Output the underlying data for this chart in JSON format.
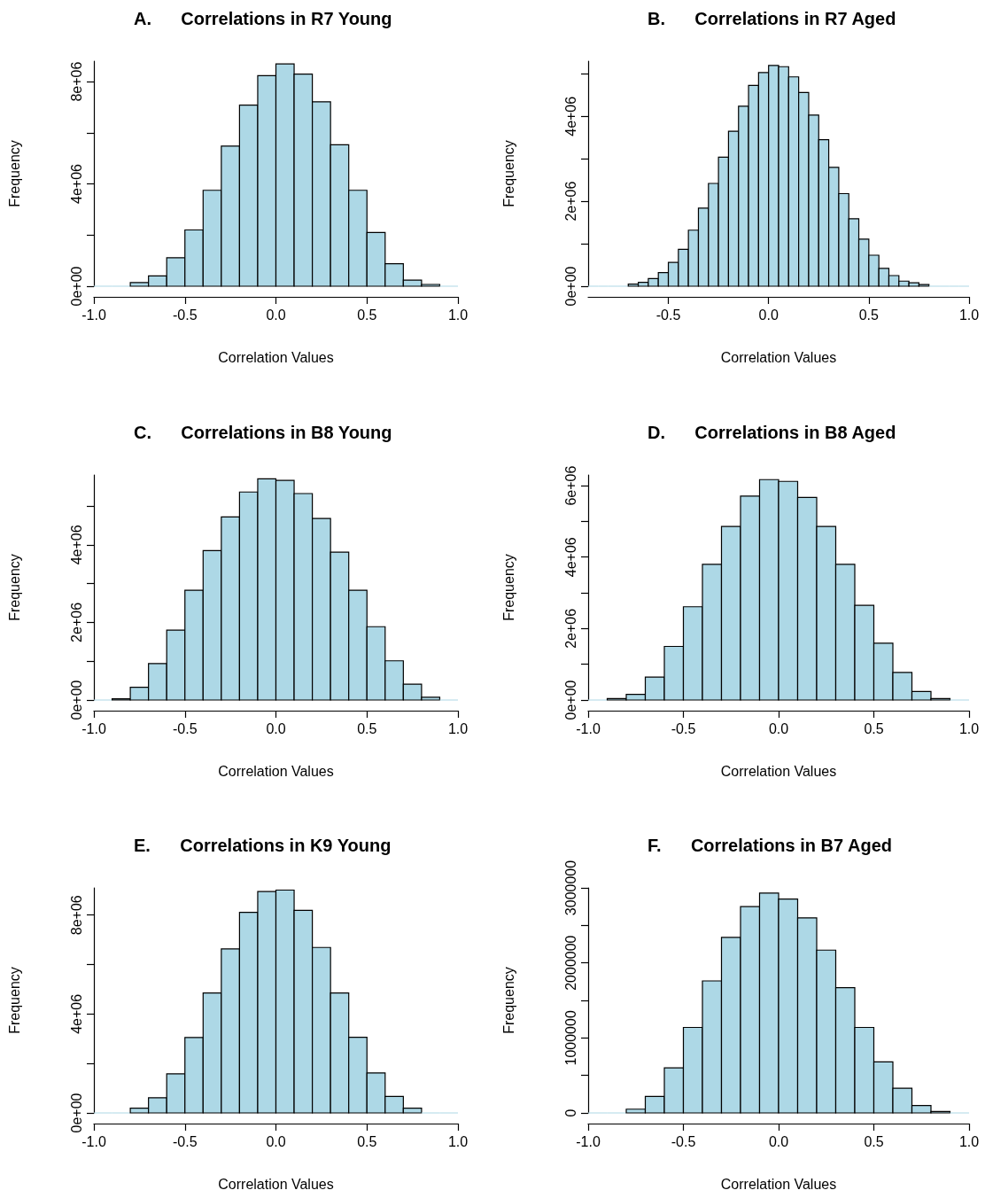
{
  "chart_data": [
    {
      "type": "histogram",
      "title": "A.      Correlations in R7 Young",
      "xlabel": "Correlation Values",
      "ylabel": "Frequency",
      "color": "#add8e6",
      "bins": [
        -1.0,
        -0.9,
        -0.8,
        -0.7,
        -0.6,
        -0.5,
        -0.4,
        -0.3,
        -0.2,
        -0.1,
        0.0,
        0.1,
        0.2,
        0.3,
        0.4,
        0.5,
        0.6,
        0.7,
        0.8,
        0.9,
        1.0
      ],
      "values": [
        0,
        0,
        140000,
        400000,
        1110000,
        2200000,
        3750000,
        5480000,
        7080000,
        8230000,
        8690000,
        8290000,
        7210000,
        5530000,
        3750000,
        2100000,
        880000,
        240000,
        70000,
        0
      ],
      "xlim": [
        -1.0,
        1.0
      ],
      "xticks": [
        {
          "value": -1.0,
          "label": "-1.0"
        },
        {
          "value": -0.5,
          "label": "-0.5"
        },
        {
          "value": 0,
          "label": "0.0"
        },
        {
          "value": 0.5,
          "label": "0.5"
        },
        {
          "value": 1.0,
          "label": "1.0"
        }
      ],
      "ylim": [
        0,
        8800000
      ],
      "yticks": [
        {
          "value": 0,
          "label": "0e+00"
        },
        {
          "value": 2000000,
          "label": null
        },
        {
          "value": 4000000,
          "label": "4e+06"
        },
        {
          "value": 6000000,
          "label": null
        },
        {
          "value": 8000000,
          "label": "8e+06"
        }
      ]
    },
    {
      "type": "histogram",
      "title": "B.      Correlations in R7 Aged",
      "xlabel": "Correlation Values",
      "ylabel": "Frequency",
      "color": "#add8e6",
      "bins": [
        -0.9,
        -0.85,
        -0.8,
        -0.75,
        -0.7,
        -0.65,
        -0.6,
        -0.55,
        -0.5,
        -0.45,
        -0.4,
        -0.35,
        -0.3,
        -0.25,
        -0.2,
        -0.15,
        -0.1,
        -0.05,
        0.0,
        0.05,
        0.1,
        0.15,
        0.2,
        0.25,
        0.3,
        0.35,
        0.4,
        0.45,
        0.5,
        0.55,
        0.6,
        0.65,
        0.7,
        0.75,
        0.8,
        0.85,
        0.9,
        0.95,
        1.0
      ],
      "values": [
        0,
        0,
        0,
        0,
        50000,
        90000,
        180000,
        320000,
        560000,
        870000,
        1320000,
        1840000,
        2420000,
        3040000,
        3650000,
        4240000,
        4730000,
        5030000,
        5200000,
        5170000,
        4930000,
        4560000,
        4030000,
        3450000,
        2800000,
        2180000,
        1590000,
        1110000,
        730000,
        420000,
        250000,
        120000,
        80000,
        40000,
        0,
        0,
        0,
        0
      ],
      "xlim": [
        -0.9,
        1.0
      ],
      "xticks": [
        {
          "value": -0.5,
          "label": "-0.5"
        },
        {
          "value": 0,
          "label": "0.0"
        },
        {
          "value": 0.5,
          "label": "0.5"
        },
        {
          "value": 1.0,
          "label": "1.0"
        }
      ],
      "ylim": [
        0,
        5300000
      ],
      "yticks": [
        {
          "value": 0,
          "label": "0e+00"
        },
        {
          "value": 1000000,
          "label": null
        },
        {
          "value": 2000000,
          "label": "2e+06"
        },
        {
          "value": 3000000,
          "label": null
        },
        {
          "value": 4000000,
          "label": "4e+06"
        },
        {
          "value": 5000000,
          "label": null
        }
      ]
    },
    {
      "type": "histogram",
      "title": "C.      Correlations in B8 Young",
      "xlabel": "Correlation Values",
      "ylabel": "Frequency",
      "color": "#add8e6",
      "bins": [
        -1.0,
        -0.9,
        -0.8,
        -0.7,
        -0.6,
        -0.5,
        -0.4,
        -0.3,
        -0.2,
        -0.1,
        0.0,
        0.1,
        0.2,
        0.3,
        0.4,
        0.5,
        0.6,
        0.7,
        0.8,
        0.9,
        1.0
      ],
      "values": [
        0,
        30000,
        330000,
        940000,
        1800000,
        2830000,
        3850000,
        4720000,
        5360000,
        5700000,
        5660000,
        5320000,
        4680000,
        3810000,
        2830000,
        1890000,
        1010000,
        410000,
        70000,
        0
      ],
      "xlim": [
        -1.0,
        1.0
      ],
      "xticks": [
        {
          "value": -1.0,
          "label": "-1.0"
        },
        {
          "value": -0.5,
          "label": "-0.5"
        },
        {
          "value": 0,
          "label": "0.0"
        },
        {
          "value": 0.5,
          "label": "0.5"
        },
        {
          "value": 1.0,
          "label": "1.0"
        }
      ],
      "ylim": [
        0,
        5800000
      ],
      "yticks": [
        {
          "value": 0,
          "label": "0e+00"
        },
        {
          "value": 1000000,
          "label": null
        },
        {
          "value": 2000000,
          "label": "2e+06"
        },
        {
          "value": 3000000,
          "label": null
        },
        {
          "value": 4000000,
          "label": "4e+06"
        },
        {
          "value": 5000000,
          "label": null
        }
      ]
    },
    {
      "type": "histogram",
      "title": "D.      Correlations in B8 Aged",
      "xlabel": "Correlation Values",
      "ylabel": "Frequency",
      "color": "#add8e6",
      "bins": [
        -1.0,
        -0.9,
        -0.8,
        -0.7,
        -0.6,
        -0.5,
        -0.4,
        -0.3,
        -0.2,
        -0.1,
        0.0,
        0.1,
        0.2,
        0.3,
        0.4,
        0.5,
        0.6,
        0.7,
        0.8,
        0.9,
        1.0
      ],
      "values": [
        0,
        40000,
        160000,
        640000,
        1500000,
        2610000,
        3800000,
        4860000,
        5710000,
        6170000,
        6120000,
        5670000,
        4860000,
        3800000,
        2650000,
        1590000,
        770000,
        240000,
        40000,
        0
      ],
      "xlim": [
        -1.0,
        1.0
      ],
      "xticks": [
        {
          "value": -1.0,
          "label": "-1.0"
        },
        {
          "value": -0.5,
          "label": "-0.5"
        },
        {
          "value": 0,
          "label": "0.0"
        },
        {
          "value": 0.5,
          "label": "0.5"
        },
        {
          "value": 1.0,
          "label": "1.0"
        }
      ],
      "ylim": [
        0,
        6300000
      ],
      "yticks": [
        {
          "value": 0,
          "label": "0e+00"
        },
        {
          "value": 1000000,
          "label": null
        },
        {
          "value": 2000000,
          "label": "2e+06"
        },
        {
          "value": 3000000,
          "label": null
        },
        {
          "value": 4000000,
          "label": "4e+06"
        },
        {
          "value": 5000000,
          "label": null
        },
        {
          "value": 6000000,
          "label": "6e+06"
        }
      ]
    },
    {
      "type": "histogram",
      "title": "E.      Correlations in K9 Young",
      "xlabel": "Correlation Values",
      "ylabel": "Frequency",
      "color": "#add8e6",
      "bins": [
        -1.0,
        -0.9,
        -0.8,
        -0.7,
        -0.6,
        -0.5,
        -0.4,
        -0.3,
        -0.2,
        -0.1,
        0.0,
        0.1,
        0.2,
        0.3,
        0.4,
        0.5,
        0.6,
        0.7,
        0.8,
        0.9,
        1.0
      ],
      "values": [
        0,
        0,
        190000,
        610000,
        1580000,
        3050000,
        4850000,
        6630000,
        8110000,
        8950000,
        9010000,
        8190000,
        6690000,
        4850000,
        3060000,
        1620000,
        670000,
        190000,
        0,
        0
      ],
      "xlim": [
        -1.0,
        1.0
      ],
      "xticks": [
        {
          "value": -1.0,
          "label": "-1.0"
        },
        {
          "value": -0.5,
          "label": "-0.5"
        },
        {
          "value": 0,
          "label": "0.0"
        },
        {
          "value": 0.5,
          "label": "0.5"
        },
        {
          "value": 1.0,
          "label": "1.0"
        }
      ],
      "ylim": [
        0,
        9100000
      ],
      "yticks": [
        {
          "value": 0,
          "label": "0e+00"
        },
        {
          "value": 2000000,
          "label": null
        },
        {
          "value": 4000000,
          "label": "4e+06"
        },
        {
          "value": 6000000,
          "label": null
        },
        {
          "value": 8000000,
          "label": "8e+06"
        }
      ]
    },
    {
      "type": "histogram",
      "title": "F.      Correlations in B7 Aged",
      "xlabel": "Correlation Values",
      "ylabel": "Frequency",
      "color": "#add8e6",
      "bins": [
        -1.0,
        -0.9,
        -0.8,
        -0.7,
        -0.6,
        -0.5,
        -0.4,
        -0.3,
        -0.2,
        -0.1,
        0.0,
        0.1,
        0.2,
        0.3,
        0.4,
        0.5,
        0.6,
        0.7,
        0.8,
        0.9,
        1.0
      ],
      "values": [
        0,
        0,
        50000,
        220000,
        600000,
        1140000,
        1760000,
        2340000,
        2750000,
        2930000,
        2850000,
        2600000,
        2170000,
        1670000,
        1140000,
        680000,
        330000,
        100000,
        20000,
        0
      ],
      "xlim": [
        -1.0,
        1.0
      ],
      "xticks": [
        {
          "value": -1.0,
          "label": "-1.0"
        },
        {
          "value": -0.5,
          "label": "-0.5"
        },
        {
          "value": 0,
          "label": "0.0"
        },
        {
          "value": 0.5,
          "label": "0.5"
        },
        {
          "value": 1.0,
          "label": "1.0"
        }
      ],
      "ylim": [
        0,
        3000000
      ],
      "yticks": [
        {
          "value": 0,
          "label": "0"
        },
        {
          "value": 500000,
          "label": null
        },
        {
          "value": 1000000,
          "label": "1000000"
        },
        {
          "value": 1500000,
          "label": null
        },
        {
          "value": 2000000,
          "label": "2000000"
        },
        {
          "value": 2500000,
          "label": null
        },
        {
          "value": 3000000,
          "label": "3000000"
        }
      ]
    }
  ]
}
